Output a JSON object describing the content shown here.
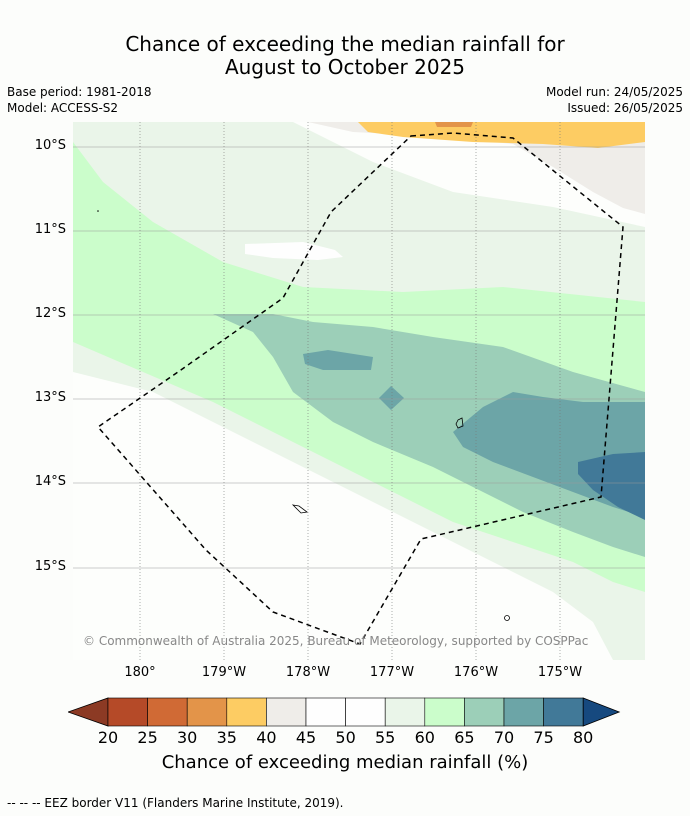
{
  "title": {
    "line1": "Chance of exceeding the median rainfall for",
    "line2": "August to October 2025"
  },
  "meta": {
    "base_period": "Base period: 1981-2018",
    "model": "Model: ACCESS-S2",
    "model_run": "Model run: 24/05/2025",
    "issued": "Issued: 26/05/2025"
  },
  "map": {
    "lat_labels": [
      "10°S",
      "11°S",
      "12°S",
      "13°S",
      "14°S",
      "15°S"
    ],
    "lon_labels": [
      "180°",
      "179°W",
      "178°W",
      "177°W",
      "176°W",
      "175°W"
    ],
    "copyright": "© Commonwealth of Australia 2025, Bureau of Meteorology, supported by COSPPac"
  },
  "colorbar": {
    "ticks": [
      "20",
      "25",
      "30",
      "35",
      "40",
      "45",
      "50",
      "55",
      "60",
      "65",
      "70",
      "75",
      "80"
    ],
    "colors": [
      "#8c3a24",
      "#b54a28",
      "#d06a35",
      "#e39449",
      "#fdcc63",
      "#efede9",
      "#fefefe",
      "#fefefe",
      "#eaf5e9",
      "#cbfdcb",
      "#9ccfb8",
      "#6ca5a7",
      "#417998",
      "#16497f"
    ],
    "title": "Chance of exceeding median rainfall (%)"
  },
  "footer": "--  --  -- EEZ border V11 (Flanders Marine Institute, 2019)."
}
